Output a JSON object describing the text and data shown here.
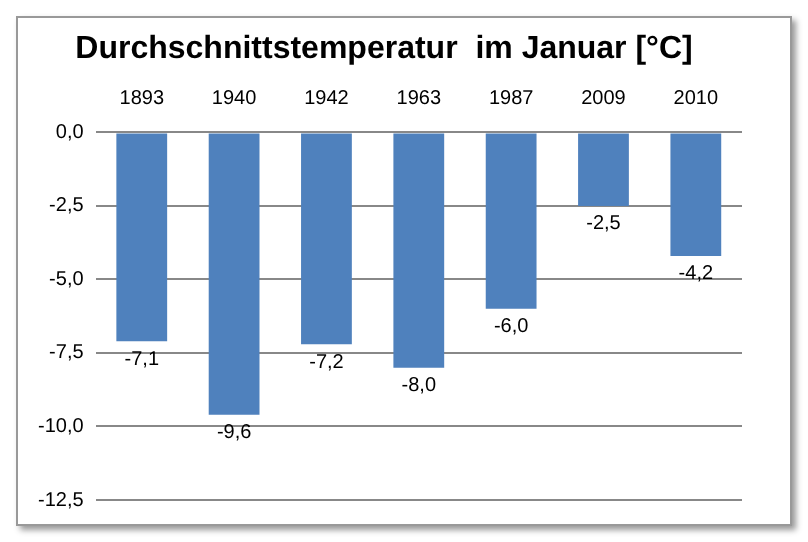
{
  "chart_data": {
    "type": "bar",
    "title": "Durchschnittstemperatur  im Januar [°C]",
    "categories": [
      "1893",
      "1940",
      "1942",
      "1963",
      "1987",
      "2009",
      "2010"
    ],
    "series": [
      {
        "color": "#4f81bd",
        "values": [
          -7.1,
          -9.6,
          -7.2,
          -8.0,
          -6.0,
          -2.5,
          -4.2
        ],
        "value_labels": [
          "-7,1",
          "-9,6",
          "-7,2",
          "-8,0",
          "-6,0",
          "-2,5",
          "-4,2"
        ]
      }
    ],
    "ylim": [
      -12.5,
      0
    ],
    "yticks": [
      {
        "value": 0,
        "label": "0,0"
      },
      {
        "value": -2.5,
        "label": "-2,5"
      },
      {
        "value": -5,
        "label": "-5,0"
      },
      {
        "value": -7.5,
        "label": "-7,5"
      },
      {
        "value": -10,
        "label": "-10,0"
      },
      {
        "value": -12.5,
        "label": "-12,5"
      }
    ],
    "grid": "y",
    "legend": false
  }
}
